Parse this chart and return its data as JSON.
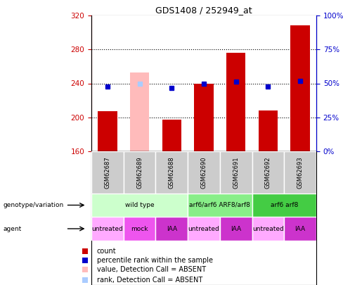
{
  "title": "GDS1408 / 252949_at",
  "samples": [
    "GSM62687",
    "GSM62689",
    "GSM62688",
    "GSM62690",
    "GSM62691",
    "GSM62692",
    "GSM62693"
  ],
  "bar_values": [
    207,
    253,
    197,
    240,
    276,
    208,
    308
  ],
  "bar_colors": [
    "#cc0000",
    "#ffbbbb",
    "#cc0000",
    "#cc0000",
    "#cc0000",
    "#cc0000",
    "#cc0000"
  ],
  "percentile_values": [
    236,
    240,
    235,
    240,
    242,
    236,
    243
  ],
  "percentile_visible": [
    true,
    false,
    true,
    true,
    true,
    true,
    true
  ],
  "percentile_color": "#0000cc",
  "rank_absent_value": 240,
  "rank_absent_sample": 1,
  "rank_absent_color": "#aaccff",
  "y_min": 160,
  "y_max": 320,
  "y_ticks": [
    160,
    200,
    240,
    280,
    320
  ],
  "y_right_ticks": [
    0,
    25,
    50,
    75,
    100
  ],
  "y_right_tick_positions": [
    160,
    200,
    240,
    280,
    320
  ],
  "grid_values": [
    200,
    240,
    280
  ],
  "genotype_groups": [
    {
      "label": "wild type",
      "start": 0,
      "end": 2,
      "color": "#ccffcc"
    },
    {
      "label": "arf6/arf6 ARF8/arf8",
      "start": 3,
      "end": 4,
      "color": "#88ee88"
    },
    {
      "label": "arf6 arf8",
      "start": 5,
      "end": 6,
      "color": "#44cc44"
    }
  ],
  "agent_groups": [
    {
      "label": "untreated",
      "start": 0,
      "end": 0,
      "color": "#ffaaff"
    },
    {
      "label": "mock",
      "start": 1,
      "end": 1,
      "color": "#ee55ee"
    },
    {
      "label": "IAA",
      "start": 2,
      "end": 2,
      "color": "#cc33cc"
    },
    {
      "label": "untreated",
      "start": 3,
      "end": 3,
      "color": "#ffaaff"
    },
    {
      "label": "IAA",
      "start": 4,
      "end": 4,
      "color": "#cc33cc"
    },
    {
      "label": "untreated",
      "start": 5,
      "end": 5,
      "color": "#ffaaff"
    },
    {
      "label": "IAA",
      "start": 6,
      "end": 6,
      "color": "#cc33cc"
    }
  ],
  "legend_items": [
    {
      "label": "count",
      "color": "#cc0000"
    },
    {
      "label": "percentile rank within the sample",
      "color": "#0000cc"
    },
    {
      "label": "value, Detection Call = ABSENT",
      "color": "#ffbbbb"
    },
    {
      "label": "rank, Detection Call = ABSENT",
      "color": "#aaccff"
    }
  ],
  "left_axis_color": "#cc0000",
  "right_axis_color": "#0000cc",
  "sample_cell_color": "#cccccc",
  "fig_width": 4.88,
  "fig_height": 4.05,
  "fig_dpi": 100
}
